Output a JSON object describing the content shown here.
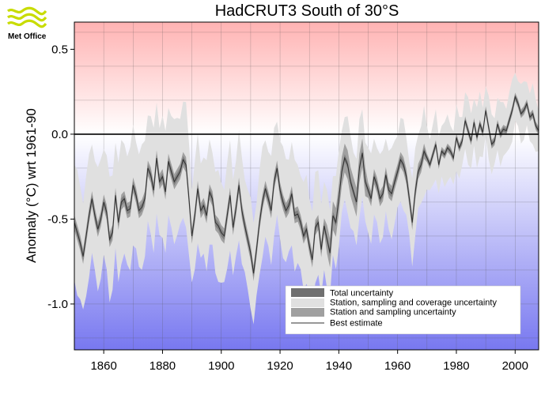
{
  "logo": {
    "text": "Met Office",
    "color": "#c8dc00"
  },
  "chart_data": {
    "type": "line",
    "title": "HadCRUT3 South of 30°S",
    "xlabel": "",
    "ylabel": "Anomaly (°C) wrt 1961-90",
    "xlim": [
      1850,
      2008
    ],
    "ylim": [
      -1.27,
      0.66
    ],
    "x_ticks": [
      1860,
      1880,
      1900,
      1920,
      1940,
      1960,
      1980,
      2000
    ],
    "y_ticks": [
      0.5,
      0.0,
      -0.5,
      -1.0
    ],
    "y_tick_labels": [
      "0.5",
      "0.0",
      "-0.5",
      "-1.0"
    ],
    "grid": true,
    "background": {
      "top_color": "#ffb3b3",
      "zero_color": "#ffffff",
      "bottom_color": "#7878f0"
    },
    "colors": {
      "total_uncertainty": "#e0e0e0",
      "coverage_uncertainty": "#808080",
      "sampling_uncertainty": "#a0a0a0",
      "best_estimate": "#303030"
    },
    "legend_position": "bottom-right",
    "series": [
      {
        "name": "Total uncertainty",
        "role": "band_total"
      },
      {
        "name": "Station, sampling and coverage uncertainty",
        "role": "band_mid"
      },
      {
        "name": "Station and sampling uncertainty",
        "role": "band_inner"
      },
      {
        "name": "Best estimate",
        "role": "line"
      }
    ],
    "x": [
      1850,
      1851,
      1852,
      1853,
      1854,
      1855,
      1856,
      1857,
      1858,
      1859,
      1860,
      1861,
      1862,
      1863,
      1864,
      1865,
      1866,
      1867,
      1868,
      1869,
      1870,
      1871,
      1872,
      1873,
      1874,
      1875,
      1876,
      1877,
      1878,
      1879,
      1880,
      1881,
      1882,
      1883,
      1884,
      1885,
      1886,
      1887,
      1888,
      1889,
      1890,
      1891,
      1892,
      1893,
      1894,
      1895,
      1896,
      1897,
      1898,
      1899,
      1900,
      1901,
      1902,
      1903,
      1904,
      1905,
      1906,
      1907,
      1908,
      1909,
      1910,
      1911,
      1912,
      1913,
      1914,
      1915,
      1916,
      1917,
      1918,
      1919,
      1920,
      1921,
      1922,
      1923,
      1924,
      1925,
      1926,
      1927,
      1928,
      1929,
      1930,
      1931,
      1932,
      1933,
      1934,
      1935,
      1936,
      1937,
      1938,
      1939,
      1940,
      1941,
      1942,
      1943,
      1944,
      1945,
      1946,
      1947,
      1948,
      1949,
      1950,
      1951,
      1952,
      1953,
      1954,
      1955,
      1956,
      1957,
      1958,
      1959,
      1960,
      1961,
      1962,
      1963,
      1964,
      1965,
      1966,
      1967,
      1968,
      1969,
      1970,
      1971,
      1972,
      1973,
      1974,
      1975,
      1976,
      1977,
      1978,
      1979,
      1980,
      1981,
      1982,
      1983,
      1984,
      1985,
      1986,
      1987,
      1988,
      1989,
      1990,
      1991,
      1992,
      1993,
      1994,
      1995,
      1996,
      1997,
      1998,
      1999,
      2000,
      2001,
      2002,
      2003,
      2004,
      2005,
      2006,
      2007,
      2008
    ],
    "values": [
      -0.52,
      -0.58,
      -0.64,
      -0.72,
      -0.6,
      -0.48,
      -0.38,
      -0.48,
      -0.56,
      -0.5,
      -0.4,
      -0.46,
      -0.62,
      -0.58,
      -0.36,
      -0.52,
      -0.4,
      -0.38,
      -0.45,
      -0.44,
      -0.3,
      -0.36,
      -0.45,
      -0.43,
      -0.38,
      -0.2,
      -0.24,
      -0.33,
      -0.14,
      -0.28,
      -0.25,
      -0.34,
      -0.16,
      -0.22,
      -0.28,
      -0.25,
      -0.22,
      -0.15,
      -0.18,
      -0.38,
      -0.6,
      -0.48,
      -0.32,
      -0.45,
      -0.42,
      -0.48,
      -0.34,
      -0.38,
      -0.52,
      -0.54,
      -0.58,
      -0.6,
      -0.48,
      -0.36,
      -0.55,
      -0.44,
      -0.3,
      -0.45,
      -0.54,
      -0.62,
      -0.7,
      -0.82,
      -0.68,
      -0.52,
      -0.4,
      -0.32,
      -0.38,
      -0.45,
      -0.28,
      -0.2,
      -0.33,
      -0.4,
      -0.45,
      -0.42,
      -0.35,
      -0.48,
      -0.47,
      -0.52,
      -0.6,
      -0.56,
      -0.66,
      -0.74,
      -0.55,
      -0.52,
      -0.68,
      -0.54,
      -0.62,
      -0.7,
      -0.48,
      -0.52,
      -0.38,
      -0.22,
      -0.14,
      -0.18,
      -0.28,
      -0.34,
      -0.4,
      -0.2,
      -0.11,
      -0.28,
      -0.33,
      -0.38,
      -0.25,
      -0.3,
      -0.38,
      -0.35,
      -0.24,
      -0.33,
      -0.35,
      -0.28,
      -0.22,
      -0.15,
      -0.18,
      -0.25,
      -0.38,
      -0.52,
      -0.34,
      -0.22,
      -0.18,
      -0.1,
      -0.14,
      -0.18,
      -0.12,
      -0.06,
      -0.18,
      -0.1,
      -0.12,
      -0.08,
      -0.1,
      -0.14,
      -0.02,
      -0.08,
      -0.04,
      0.08,
      0.02,
      -0.04,
      0.07,
      -0.02,
      0.06,
      0.01,
      0.14,
      0.04,
      -0.06,
      -0.04,
      0.06,
      0.0,
      0.03,
      0.02,
      0.08,
      0.14,
      0.22,
      0.18,
      0.12,
      0.14,
      0.18,
      0.1,
      0.12,
      0.05,
      0.02
    ]
  }
}
